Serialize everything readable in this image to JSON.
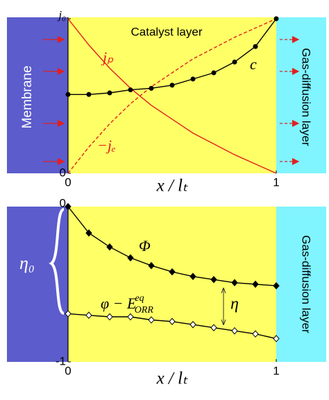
{
  "chart_data": [
    {
      "type": "line",
      "regions": [
        "Membrane",
        "Catalyst layer",
        "Gas-diffusion layer"
      ],
      "xlabel": "x / lₜ",
      "x": [
        0,
        0.1,
        0.2,
        0.3,
        0.4,
        0.5,
        0.6,
        0.7,
        0.8,
        0.9,
        1
      ],
      "xlim": [
        0,
        1
      ],
      "xticks": [
        0,
        1
      ],
      "ylim": [
        0,
        1
      ],
      "yticks": [
        0,
        {
          "value": 1,
          "label": "j₀"
        }
      ],
      "series": [
        {
          "name": "jₚ",
          "color": "#e02020",
          "line_style": "solid",
          "marker": null,
          "values": [
            1,
            0.83,
            0.68,
            0.55,
            0.44,
            0.35,
            0.26,
            0.19,
            0.12,
            0.06,
            0
          ]
        },
        {
          "name": "−jₑ",
          "color": "#e02020",
          "line_style": "dashed",
          "marker": null,
          "values": [
            0,
            0.17,
            0.32,
            0.45,
            0.56,
            0.65,
            0.74,
            0.81,
            0.88,
            0.94,
            1
          ]
        },
        {
          "name": "c",
          "color": "#000000",
          "line_style": "solid",
          "marker": "circle",
          "values": [
            0.51,
            0.51,
            0.52,
            0.54,
            0.55,
            0.57,
            0.61,
            0.65,
            0.72,
            0.82,
            1
          ]
        }
      ]
    },
    {
      "type": "line",
      "regions": [
        "Gas-diffusion layer"
      ],
      "annotations": [
        "η",
        "η₀"
      ],
      "xlabel": "x / lₜ",
      "x": [
        0,
        0.1,
        0.2,
        0.3,
        0.4,
        0.5,
        0.6,
        0.7,
        0.8,
        0.9,
        1
      ],
      "xlim": [
        0,
        1
      ],
      "xticks": [
        0,
        1
      ],
      "ylim": [
        -1,
        0
      ],
      "yticks": [
        -1,
        0
      ],
      "series": [
        {
          "name": "Φ",
          "color": "#000000",
          "line_style": "solid",
          "marker": "diamond",
          "values": [
            0,
            -0.17,
            -0.26,
            -0.33,
            -0.38,
            -0.42,
            -0.45,
            -0.47,
            -0.49,
            -0.5,
            -0.51
          ]
        },
        {
          "name": "φ − E",
          "name_sub": "ORR",
          "name_sup": "eq",
          "color": "#000000",
          "line_style": "solid",
          "marker": "open-diamond",
          "values": [
            -0.69,
            -0.7,
            -0.71,
            -0.71,
            -0.73,
            -0.74,
            -0.76,
            -0.78,
            -0.8,
            -0.82,
            -0.85
          ]
        }
      ]
    }
  ]
}
